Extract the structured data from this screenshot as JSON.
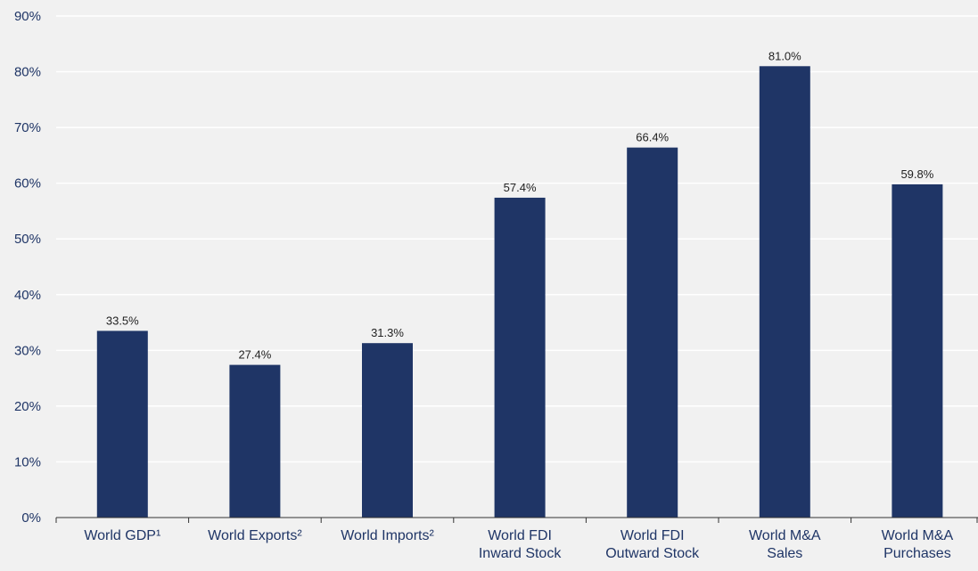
{
  "chart_data": {
    "type": "bar",
    "categories": [
      [
        "World GDP¹"
      ],
      [
        "World Exports²"
      ],
      [
        "World Imports²"
      ],
      [
        "World FDI",
        "Inward Stock"
      ],
      [
        "World FDI",
        "Outward Stock"
      ],
      [
        "World M&A",
        "Sales"
      ],
      [
        "World M&A",
        "Purchases"
      ]
    ],
    "values": [
      33.5,
      27.4,
      31.3,
      57.4,
      66.4,
      81.0,
      59.8
    ],
    "data_labels": [
      "33.5%",
      "27.4%",
      "31.3%",
      "57.4%",
      "66.4%",
      "81.0%",
      "59.8%"
    ],
    "ylim": [
      0,
      90
    ],
    "yticks": [
      0,
      10,
      20,
      30,
      40,
      50,
      60,
      70,
      80,
      90
    ],
    "ytick_labels": [
      "0%",
      "10%",
      "20%",
      "30%",
      "40%",
      "50%",
      "60%",
      "70%",
      "80%",
      "90%"
    ],
    "grid": true,
    "colors": {
      "bar": "#1f3566",
      "grid": "#ffffff",
      "background": "#f1f1f1"
    }
  }
}
